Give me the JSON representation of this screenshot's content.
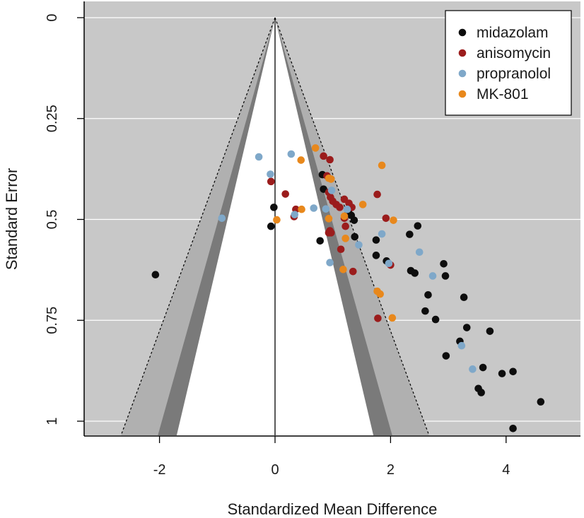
{
  "chart_data": {
    "type": "scatter",
    "subtype": "contour-enhanced funnel plot",
    "title": "",
    "xlabel": "Standardized Mean Difference",
    "ylabel": "Standard Error",
    "xlim": [
      -3.3,
      5.3
    ],
    "ylim": [
      1.02,
      -0.02
    ],
    "y_inverted": true,
    "xticks": [
      -2,
      0,
      2,
      4
    ],
    "xtick_labels": [
      "-2",
      "0",
      "2",
      "4"
    ],
    "yticks": [
      0,
      0.25,
      0.5,
      0.75,
      1
    ],
    "ytick_labels": [
      "0",
      "0.25",
      "0.5",
      "0.75",
      "1"
    ],
    "grid": "horizontal",
    "legend_position": "top-right",
    "contour_z": {
      "p10": 1.645,
      "p05": 1.96,
      "p01": 2.576
    },
    "center_line_x": 0,
    "colors": {
      "panel_bg": "#c8c8c8",
      "contour_p10": "#b0b0b0",
      "contour_p05": "#7a7a7a",
      "funnel_inner": "#ffffff",
      "gridline": "#ffffff",
      "axis": "#000000"
    },
    "series": [
      {
        "name": "midazolam",
        "color": "#0d0d0d",
        "points": [
          [
            -2.07,
            0.637
          ],
          [
            -0.02,
            0.47
          ],
          [
            -0.07,
            0.517
          ],
          [
            0.78,
            0.553
          ],
          [
            0.82,
            0.389
          ],
          [
            0.84,
            0.425
          ],
          [
            1.27,
            0.48
          ],
          [
            1.32,
            0.49
          ],
          [
            1.37,
            0.502
          ],
          [
            1.38,
            0.543
          ],
          [
            1.75,
            0.551
          ],
          [
            1.75,
            0.589
          ],
          [
            1.93,
            0.603
          ],
          [
            2.33,
            0.537
          ],
          [
            2.47,
            0.516
          ],
          [
            2.35,
            0.627
          ],
          [
            2.42,
            0.633
          ],
          [
            2.65,
            0.687
          ],
          [
            2.6,
            0.727
          ],
          [
            2.78,
            0.748
          ],
          [
            2.92,
            0.61
          ],
          [
            2.95,
            0.64
          ],
          [
            3.2,
            0.802
          ],
          [
            3.27,
            0.693
          ],
          [
            3.32,
            0.768
          ],
          [
            3.72,
            0.777
          ],
          [
            2.96,
            0.838
          ],
          [
            3.6,
            0.867
          ],
          [
            3.93,
            0.882
          ],
          [
            4.12,
            0.877
          ],
          [
            3.52,
            0.919
          ],
          [
            3.57,
            0.929
          ],
          [
            4.6,
            0.952
          ],
          [
            4.12,
            1.018
          ]
        ]
      },
      {
        "name": "anisomycin",
        "color": "#9b1c1c",
        "points": [
          [
            -0.07,
            0.406
          ],
          [
            0.18,
            0.437
          ],
          [
            0.33,
            0.493
          ],
          [
            0.36,
            0.475
          ],
          [
            0.84,
            0.343
          ],
          [
            0.95,
            0.352
          ],
          [
            0.9,
            0.392
          ],
          [
            0.93,
            0.433
          ],
          [
            0.96,
            0.445
          ],
          [
            1.0,
            0.455
          ],
          [
            1.06,
            0.463
          ],
          [
            1.12,
            0.47
          ],
          [
            1.2,
            0.45
          ],
          [
            1.28,
            0.46
          ],
          [
            1.33,
            0.47
          ],
          [
            1.2,
            0.497
          ],
          [
            1.22,
            0.517
          ],
          [
            0.93,
            0.533
          ],
          [
            0.95,
            0.528
          ],
          [
            0.97,
            0.533
          ],
          [
            1.14,
            0.574
          ],
          [
            1.35,
            0.629
          ],
          [
            1.77,
            0.438
          ],
          [
            1.92,
            0.497
          ],
          [
            1.78,
            0.745
          ],
          [
            2.0,
            0.613
          ]
        ]
      },
      {
        "name": "propranolol",
        "color": "#7fa8c9",
        "points": [
          [
            -0.92,
            0.497
          ],
          [
            -0.28,
            0.345
          ],
          [
            -0.08,
            0.388
          ],
          [
            0.28,
            0.338
          ],
          [
            0.34,
            0.488
          ],
          [
            0.67,
            0.472
          ],
          [
            0.88,
            0.474
          ],
          [
            0.98,
            0.428
          ],
          [
            0.95,
            0.607
          ],
          [
            1.25,
            0.475
          ],
          [
            1.45,
            0.563
          ],
          [
            1.97,
            0.609
          ],
          [
            1.85,
            0.536
          ],
          [
            2.5,
            0.581
          ],
          [
            2.73,
            0.64
          ],
          [
            3.23,
            0.813
          ],
          [
            3.42,
            0.871
          ]
        ]
      },
      {
        "name": "MK-801",
        "color": "#e8881c",
        "points": [
          [
            0.03,
            0.501
          ],
          [
            0.45,
            0.353
          ],
          [
            0.46,
            0.475
          ],
          [
            0.7,
            0.323
          ],
          [
            0.93,
            0.398
          ],
          [
            0.97,
            0.4
          ],
          [
            0.93,
            0.498
          ],
          [
            1.2,
            0.492
          ],
          [
            1.22,
            0.547
          ],
          [
            1.18,
            0.624
          ],
          [
            1.52,
            0.463
          ],
          [
            1.85,
            0.366
          ],
          [
            2.05,
            0.502
          ],
          [
            1.77,
            0.678
          ],
          [
            1.82,
            0.685
          ],
          [
            2.03,
            0.744
          ]
        ]
      }
    ]
  }
}
